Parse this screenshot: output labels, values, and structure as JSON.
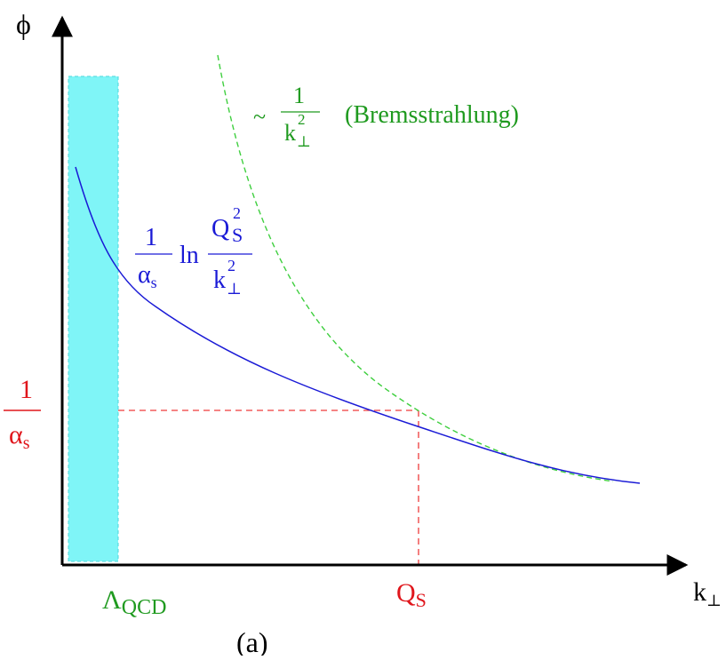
{
  "figure": {
    "caption": "(a)",
    "colors": {
      "band_fill": "#7ff5f7",
      "band_edge": "#48d7db",
      "curve_solid": "#1a1ad6",
      "curve_dashed": "#3fcf3f",
      "guide_dashed": "#ef3b3b",
      "axis": "#000000",
      "green_text": "#1f9a1f",
      "red_text": "#e0161c",
      "blue_text": "#1a1ad6"
    }
  },
  "axes": {
    "y_label": "ϕ",
    "x_label_main": "k",
    "x_label_sub": "⊥"
  },
  "labels": {
    "lambda_main": "Λ",
    "lambda_sub": "QCD",
    "qs_main": "Q",
    "qs_sub": "S",
    "inv_alpha_num": "1",
    "inv_alpha_main": "α",
    "inv_alpha_sub": "s"
  },
  "solid_curve_label": {
    "coef_num": "1",
    "coef_den_main": "α",
    "coef_den_sub": "s",
    "ln": "ln",
    "num_main": "Q",
    "num_sub": "S",
    "num_sup": "2",
    "den_main": "k",
    "den_sub": "⊥",
    "den_sup": "2"
  },
  "dashed_curve_label": {
    "tilde": "~",
    "num": "1",
    "den_main": "k",
    "den_sub": "⊥",
    "den_sup": "2",
    "name": "(Bremsstrahlung)"
  }
}
